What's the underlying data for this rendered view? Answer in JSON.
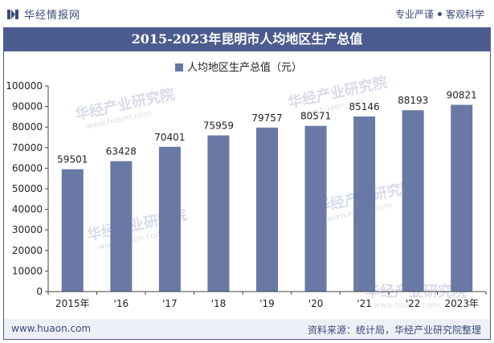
{
  "brand": {
    "name": "华经情报网",
    "logo_icon": "huajing-logo-icon"
  },
  "tagline": {
    "left": "专业严谨",
    "right": "客观科学"
  },
  "footer": {
    "website": "www.huaon.com",
    "source": "资料来源：统计局，华经产业研究院整理"
  },
  "watermark": {
    "text": "华经产业研究院",
    "subtext": "www.huaon.com"
  },
  "colors": {
    "bar": "#6a78a6",
    "title_bg": "#4d5c8f",
    "footer_bg": "#eef0f7"
  },
  "chart_data": {
    "type": "bar",
    "title": "2015-2023年昆明市人均地区生产总值",
    "legend": "人均地区生产总值（元）",
    "legend_position": "top-center",
    "categories": [
      "2015年",
      "'16",
      "'17",
      "'18",
      "'19",
      "'20",
      "'21",
      "'22",
      "2023年"
    ],
    "values": [
      59501,
      63428,
      70401,
      75959,
      79757,
      80571,
      85146,
      88193,
      90821
    ],
    "value_labels": [
      "59501",
      "63428",
      "70401",
      "75959",
      "79757",
      "80571",
      "85146",
      "88193",
      "90821"
    ],
    "ylim": [
      0,
      100000
    ],
    "yticks": [
      "0",
      "10000",
      "20000",
      "30000",
      "40000",
      "50000",
      "60000",
      "70000",
      "80000",
      "90000",
      "100000"
    ],
    "grid": false
  }
}
